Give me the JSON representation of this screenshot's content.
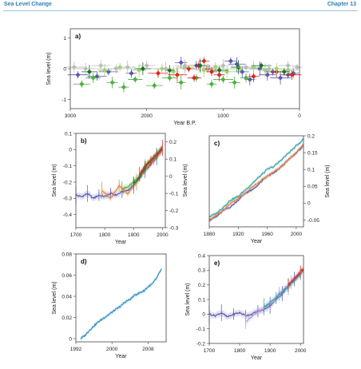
{
  "header": {
    "left": "Sea Level Change",
    "right": "Chapter 13"
  },
  "colors": {
    "header": "#2f7fb5",
    "purple": "#5b57b0",
    "green": "#4caf3f",
    "light_green": "#9bd56b",
    "dark_green": "#1f6e2a",
    "orange": "#e0843a",
    "red": "#d62a22",
    "teal": "#35a3a6",
    "blue": "#2f8fc7",
    "lavender": "#b497d6",
    "gray": "#bbbbbb"
  },
  "chart_data": [
    {
      "panel": "a)",
      "type": "scatter",
      "xlabel": "Year B.P.",
      "ylabel": "Sea level (m)",
      "xlim": [
        3000,
        0
      ],
      "ylim": [
        -1.3,
        1.3
      ],
      "xticks": [
        3000,
        2000,
        1000,
        0
      ],
      "yticks": [
        -1,
        0,
        1
      ],
      "series": [
        {
          "color": "#5b57b0",
          "points": [
            [
              2900,
              -0.2
            ],
            [
              2650,
              -0.25
            ],
            [
              2500,
              -0.1
            ],
            [
              2200,
              -0.15
            ],
            [
              1550,
              0.2
            ],
            [
              1350,
              0.1
            ],
            [
              900,
              0.25
            ],
            [
              820,
              0.15
            ],
            [
              750,
              -0.1
            ],
            [
              650,
              -0.35
            ],
            [
              520,
              0.0
            ],
            [
              420,
              -0.2
            ],
            [
              350,
              -0.1
            ],
            [
              250,
              -0.3
            ],
            [
              150,
              -0.2
            ],
            [
              80,
              -0.15
            ]
          ]
        },
        {
          "color": "#4caf3f",
          "points": [
            [
              2850,
              -0.5
            ],
            [
              2700,
              -0.3
            ],
            [
              2450,
              -0.45
            ],
            [
              2300,
              -0.6
            ],
            [
              2150,
              -0.35
            ],
            [
              1900,
              -0.55
            ],
            [
              1700,
              -0.3
            ],
            [
              1550,
              -0.45
            ],
            [
              1350,
              -0.3
            ],
            [
              1150,
              -0.5
            ],
            [
              1000,
              -0.35
            ],
            [
              850,
              -0.45
            ],
            [
              700,
              -0.3
            ]
          ]
        },
        {
          "color": "#d62a22",
          "points": [
            [
              1850,
              -0.15
            ],
            [
              1600,
              -0.2
            ],
            [
              1450,
              0.0
            ],
            [
              1380,
              -0.3
            ],
            [
              1320,
              0.1
            ],
            [
              1250,
              0.25
            ],
            [
              1200,
              0.0
            ],
            [
              1150,
              -0.1
            ],
            [
              1050,
              -0.2
            ],
            [
              600,
              -0.25
            ],
            [
              300,
              -0.1
            ],
            [
              100,
              -0.2
            ]
          ]
        },
        {
          "color": "#9bd56b",
          "points": [
            [
              2550,
              -0.05
            ],
            [
              2350,
              0.05
            ],
            [
              2100,
              -0.05
            ],
            [
              1800,
              0.0
            ],
            [
              1650,
              -0.1
            ],
            [
              1500,
              0.05
            ],
            [
              1250,
              -0.05
            ],
            [
              1100,
              0.05
            ],
            [
              950,
              -0.1
            ],
            [
              780,
              0.0
            ],
            [
              600,
              0.05
            ],
            [
              450,
              -0.05
            ],
            [
              300,
              0.0
            ],
            [
              150,
              -0.05
            ]
          ]
        },
        {
          "color": "#1f6e2a",
          "points": [
            [
              2750,
              -0.1
            ],
            [
              2050,
              0.0
            ],
            [
              1700,
              -0.05
            ],
            [
              1300,
              0.1
            ],
            [
              1050,
              -0.05
            ],
            [
              800,
              0.05
            ],
            [
              500,
              0.1
            ],
            [
              200,
              -0.1
            ]
          ]
        },
        {
          "color": "#bbbbbb",
          "points": [
            [
              2950,
              0.05
            ],
            [
              2800,
              0.0
            ],
            [
              2600,
              0.1
            ],
            [
              2400,
              0.0
            ],
            [
              2250,
              0.05
            ],
            [
              2000,
              0.1
            ],
            [
              1750,
              0.0
            ],
            [
              1500,
              0.1
            ],
            [
              1200,
              0.05
            ],
            [
              1000,
              0.1
            ],
            [
              700,
              0.05
            ],
            [
              400,
              0.0
            ],
            [
              150,
              0.1
            ],
            [
              30,
              0.05
            ]
          ]
        }
      ]
    },
    {
      "panel": "b)",
      "type": "line",
      "xlabel": "Year",
      "ylabel": "Sea level (m)",
      "xlim": [
        1700,
        2010
      ],
      "ylim": [
        -0.48,
        0.1
      ],
      "xticks": [
        1700,
        1800,
        1900,
        2000
      ],
      "yticks": [
        -0.4,
        -0.3,
        -0.2,
        -0.1,
        0,
        0.1
      ],
      "right_axis": {
        "ylabel": "Sea level (m)",
        "ylim": [
          -0.3,
          0.25
        ],
        "yticks": [
          -0.3,
          -0.2,
          -0.1,
          0,
          0.1,
          0.2
        ]
      },
      "series": [
        {
          "color": "#5b57b0",
          "x": [
            1700,
            1720,
            1740,
            1760,
            1780,
            1800,
            1820,
            1840,
            1860,
            1880,
            1900,
            1920,
            1940,
            1960,
            1980,
            2000
          ],
          "y": [
            -0.28,
            -0.29,
            -0.27,
            -0.3,
            -0.28,
            -0.29,
            -0.27,
            -0.28,
            -0.26,
            -0.25,
            -0.22,
            -0.18,
            -0.13,
            -0.09,
            -0.05,
            0.0
          ]
        },
        {
          "color": "#4caf3f",
          "x": [
            1860,
            1880,
            1900,
            1920,
            1940,
            1960,
            1980,
            2000
          ],
          "y": [
            -0.24,
            -0.23,
            -0.2,
            -0.16,
            -0.1,
            -0.06,
            -0.03,
            0.02
          ]
        },
        {
          "color": "#e0843a",
          "x": [
            1790,
            1820,
            1850,
            1880,
            1910,
            1940,
            1970,
            2000
          ],
          "y": [
            -0.25,
            -0.3,
            -0.22,
            -0.27,
            -0.2,
            -0.12,
            -0.06,
            -0.01
          ]
        },
        {
          "color": "#1f6e2a",
          "x": [
            1900,
            1920,
            1940,
            1960,
            1980,
            2000
          ],
          "y": [
            -0.21,
            -0.17,
            -0.11,
            -0.07,
            -0.03,
            0.01
          ]
        },
        {
          "color": "#d62a22",
          "x": [
            1920,
            1940,
            1960,
            1980,
            2000
          ],
          "y": [
            -0.15,
            -0.1,
            -0.07,
            -0.03,
            0.01
          ]
        }
      ]
    },
    {
      "panel": "c)",
      "type": "line",
      "xlabel": "Year",
      "ylabel": "Sea level (m)",
      "ylabel_side": "right",
      "xlim": [
        1880,
        2010
      ],
      "ylim": [
        -0.07,
        0.2
      ],
      "xticks": [
        1880,
        1920,
        1960,
        2000
      ],
      "yticks": [
        -0.05,
        0,
        0.05,
        0.1,
        0.15,
        0.2
      ],
      "series": [
        {
          "color": "#5b57b0",
          "x": [
            1880,
            1890,
            1900,
            1910,
            1920,
            1930,
            1940,
            1950,
            1960,
            1970,
            1980,
            1990,
            2000,
            2010
          ],
          "y": [
            -0.05,
            -0.04,
            -0.02,
            -0.01,
            0.01,
            0.03,
            0.04,
            0.06,
            0.08,
            0.09,
            0.11,
            0.13,
            0.15,
            0.17
          ]
        },
        {
          "color": "#35a3a6",
          "x": [
            1880,
            1890,
            1900,
            1910,
            1920,
            1930,
            1940,
            1950,
            1960,
            1970,
            1980,
            1990,
            2000,
            2010
          ],
          "y": [
            -0.04,
            -0.03,
            -0.01,
            0.01,
            0.02,
            0.04,
            0.06,
            0.08,
            0.1,
            0.11,
            0.13,
            0.15,
            0.17,
            0.19
          ]
        },
        {
          "color": "#e0843a",
          "x": [
            1880,
            1890,
            1900,
            1910,
            1920,
            1930,
            1940,
            1950,
            1960,
            1970,
            1980,
            1990,
            2000,
            2010
          ],
          "y": [
            -0.05,
            -0.035,
            -0.02,
            0.0,
            0.015,
            0.03,
            0.05,
            0.065,
            0.08,
            0.095,
            0.11,
            0.13,
            0.15,
            0.175
          ]
        }
      ]
    },
    {
      "panel": "d)",
      "type": "line",
      "xlabel": "Year",
      "ylabel": "Sea level (m)",
      "xlim": [
        1992,
        2012
      ],
      "ylim": [
        -0.003,
        0.08
      ],
      "xticks": [
        1992,
        2000,
        2008
      ],
      "yticks": [
        0,
        0.02,
        0.04,
        0.06,
        0.08
      ],
      "series": [
        {
          "color": "#2f8fc7",
          "x": [
            1993,
            1994,
            1995,
            1996,
            1997,
            1998,
            1999,
            2000,
            2001,
            2002,
            2003,
            2004,
            2005,
            2006,
            2007,
            2008,
            2009,
            2010,
            2011
          ],
          "y": [
            0.0,
            0.003,
            0.008,
            0.012,
            0.016,
            0.019,
            0.022,
            0.025,
            0.028,
            0.031,
            0.035,
            0.037,
            0.041,
            0.043,
            0.045,
            0.049,
            0.052,
            0.058,
            0.066
          ]
        }
      ]
    },
    {
      "panel": "e)",
      "type": "line",
      "xlabel": "Year",
      "ylabel": "Sea level (m)",
      "xlim": [
        1700,
        2010
      ],
      "ylim": [
        -0.2,
        0.4
      ],
      "xticks": [
        1700,
        1800,
        1900,
        2000
      ],
      "yticks": [
        -0.2,
        -0.1,
        0,
        0.1,
        0.2,
        0.3,
        0.4
      ],
      "series": [
        {
          "color": "#5b57b0",
          "x": [
            1700,
            1720,
            1740,
            1760,
            1780,
            1800,
            1820,
            1840,
            1860,
            1880,
            1900,
            1920,
            1940,
            1960,
            1980,
            2000
          ],
          "y": [
            0.0,
            -0.01,
            0.01,
            -0.02,
            0.0,
            0.01,
            -0.01,
            0.0,
            0.02,
            0.03,
            0.06,
            0.1,
            0.14,
            0.19,
            0.24,
            0.28
          ]
        },
        {
          "color": "#b497d6",
          "x": [
            1820,
            1850,
            1880,
            1910,
            1930,
            1950,
            1970,
            1990
          ],
          "y": [
            -0.05,
            0.0,
            0.04,
            0.08,
            0.14,
            0.18,
            0.22,
            0.25
          ]
        },
        {
          "color": "#35a3a6",
          "x": [
            1880,
            1900,
            1920,
            1940,
            1960,
            1980,
            2000,
            2010
          ],
          "y": [
            0.05,
            0.08,
            0.11,
            0.15,
            0.19,
            0.23,
            0.27,
            0.3
          ]
        },
        {
          "color": "#d62a22",
          "x": [
            1960,
            1980,
            2000,
            2010
          ],
          "y": [
            0.2,
            0.24,
            0.29,
            0.31
          ]
        }
      ]
    }
  ]
}
